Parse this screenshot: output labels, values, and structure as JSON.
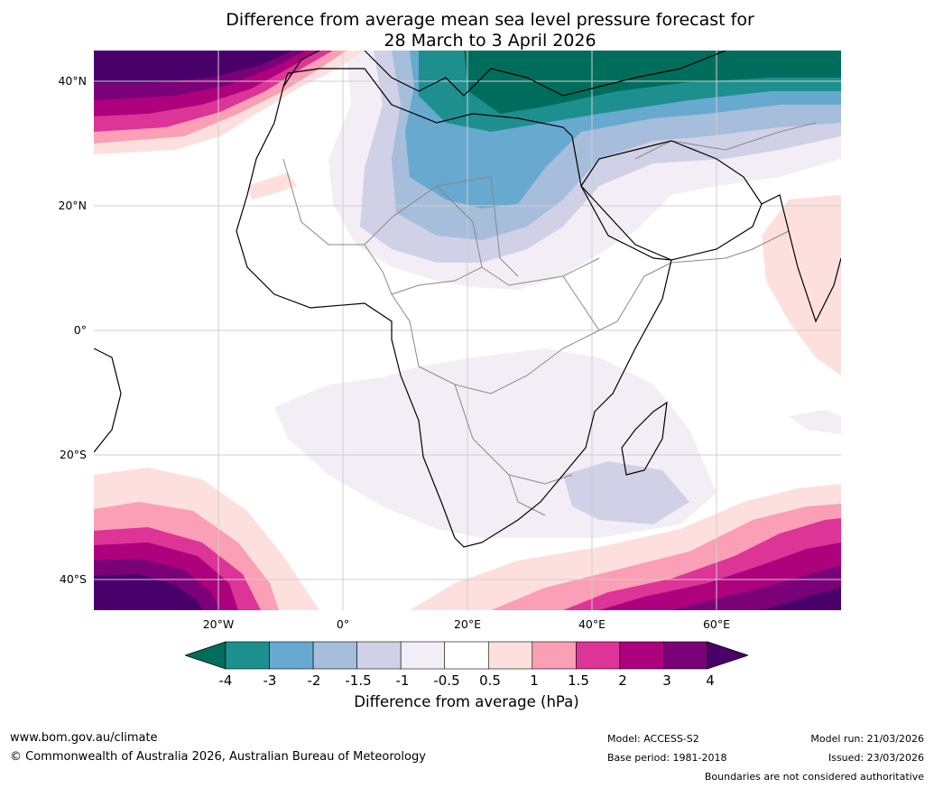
{
  "title": {
    "line1": "Difference from average mean sea level pressure forecast for",
    "line2": "28 March to 3 April 2026"
  },
  "map": {
    "region": "Africa",
    "lat_labels": [
      "40°N",
      "20°N",
      "0°",
      "20°S",
      "40°S"
    ],
    "lon_labels": [
      "20°W",
      "0°",
      "20°E",
      "40°E",
      "60°E"
    ]
  },
  "colorbar": {
    "ticks": [
      "-4",
      "-3",
      "-2",
      "-1.5",
      "-1",
      "-0.5",
      "0.5",
      "1",
      "1.5",
      "2",
      "3",
      "4"
    ],
    "colors": {
      "below_min": "#006d5c",
      "bins": [
        "#1e8f8f",
        "#67a9cf",
        "#a6bddb",
        "#d0d1e6",
        "#f3eef5",
        "#ffffff",
        "#fde0dd",
        "#fa9fb5",
        "#dd3497",
        "#ae017e",
        "#7a0177"
      ],
      "above_max": "#49006a"
    },
    "label": "Difference from average (hPa)"
  },
  "footer": {
    "website": "www.bom.gov.au/climate",
    "copyright": "© Commonwealth of Australia 2026, Australian Bureau of Meteorology",
    "model": "Model: ACCESS-S2",
    "base_period": "Base period: 1981-2018",
    "model_run": "Model run: 21/03/2026",
    "issued": "Issued: 23/03/2026",
    "disclaimer": "Boundaries are not considered authoritative"
  }
}
